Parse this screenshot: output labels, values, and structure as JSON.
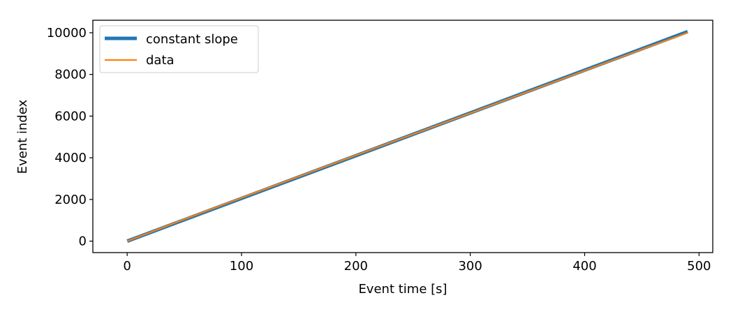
{
  "chart_data": {
    "type": "line",
    "title": "",
    "xlabel": "Event time [s]",
    "ylabel": "Event index",
    "xlim": [
      -30,
      512
    ],
    "ylim": [
      -550,
      10600
    ],
    "xticks": [
      0,
      100,
      200,
      300,
      400,
      500
    ],
    "yticks": [
      0,
      2000,
      4000,
      6000,
      8000,
      10000
    ],
    "xtick_labels": [
      "0",
      "100",
      "200",
      "300",
      "400",
      "500"
    ],
    "ytick_labels": [
      "0",
      "2000",
      "4000",
      "6000",
      "8000",
      "10000"
    ],
    "grid": false,
    "legend_position": "top-left",
    "series": [
      {
        "name": "constant slope",
        "color": "#1f77b4",
        "style": "thick",
        "x": [
          0,
          490
        ],
        "y": [
          0,
          10050
        ]
      },
      {
        "name": "data",
        "color": "#ff7f0e",
        "style": "thin",
        "x": [
          0,
          50,
          100,
          150,
          200,
          250,
          300,
          350,
          400,
          450,
          490
        ],
        "y": [
          0,
          1050,
          2080,
          3100,
          4120,
          5130,
          6140,
          7160,
          8180,
          9200,
          10000
        ]
      }
    ]
  }
}
